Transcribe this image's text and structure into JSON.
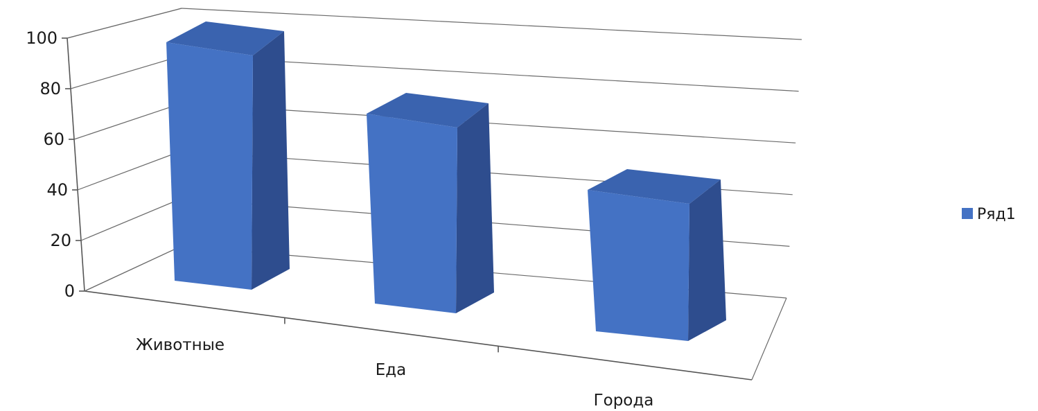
{
  "chart_data": {
    "type": "bar",
    "categories": [
      "Животные",
      "Еда",
      "Города"
    ],
    "series": [
      {
        "name": "Ряд1",
        "values": [
          100,
          80,
          60
        ]
      }
    ],
    "ylim": [
      0,
      100
    ],
    "y_ticks": [
      "0",
      "20",
      "40",
      "60",
      "80",
      "100"
    ],
    "grid": true,
    "legend": "right",
    "three_d": true,
    "colors": {
      "bar_front": "#4472C4",
      "bar_side": "#2E4D8E",
      "bar_top": "#3A63AF"
    }
  }
}
